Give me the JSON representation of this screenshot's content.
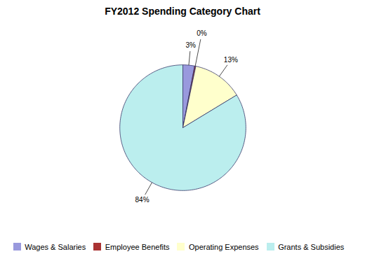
{
  "chart_data": {
    "type": "pie",
    "title": "FY2012 Spending Category Chart",
    "categories": [
      "Wages & Salaries",
      "Employee Benefits",
      "Operating Expenses",
      "Grants & Subsidies"
    ],
    "values": [
      3,
      0.3,
      13,
      83.7
    ],
    "value_labels": [
      "3%",
      "0%",
      "13%",
      "84%"
    ],
    "colors": [
      "#9999dd",
      "#aa3333",
      "#ffffcc",
      "#bbeeee"
    ],
    "data_labels": true,
    "legend": "bottom"
  }
}
